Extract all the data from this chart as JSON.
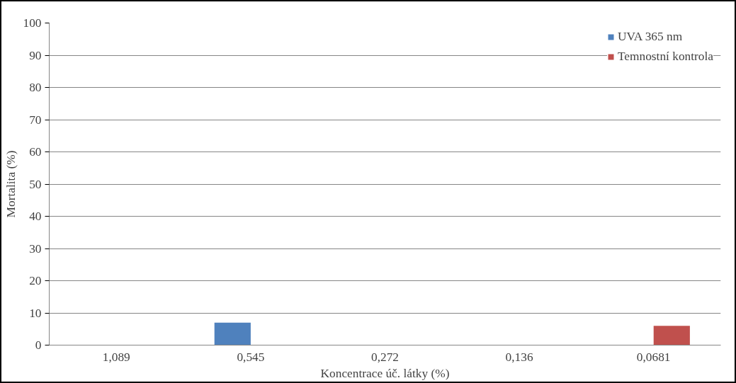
{
  "chart_data": {
    "type": "bar",
    "xlabel": "Koncentrace úč. látky (%)",
    "ylabel": "Mortalita (%)",
    "categories": [
      "1,089",
      "0,545",
      "0,272",
      "0,136",
      "0,0681"
    ],
    "series": [
      {
        "name": "UVA 365 nm",
        "color": "#4f81bd",
        "values": [
          0,
          7,
          0,
          0,
          0
        ]
      },
      {
        "name": "Temnostní kontrola",
        "color": "#c0504d",
        "values": [
          0,
          0,
          0,
          0,
          6
        ]
      }
    ],
    "ylim": [
      0,
      100
    ],
    "yticks": [
      0,
      10,
      20,
      30,
      40,
      50,
      60,
      70,
      80,
      90,
      100
    ],
    "grid": "y",
    "legend": "top right"
  }
}
